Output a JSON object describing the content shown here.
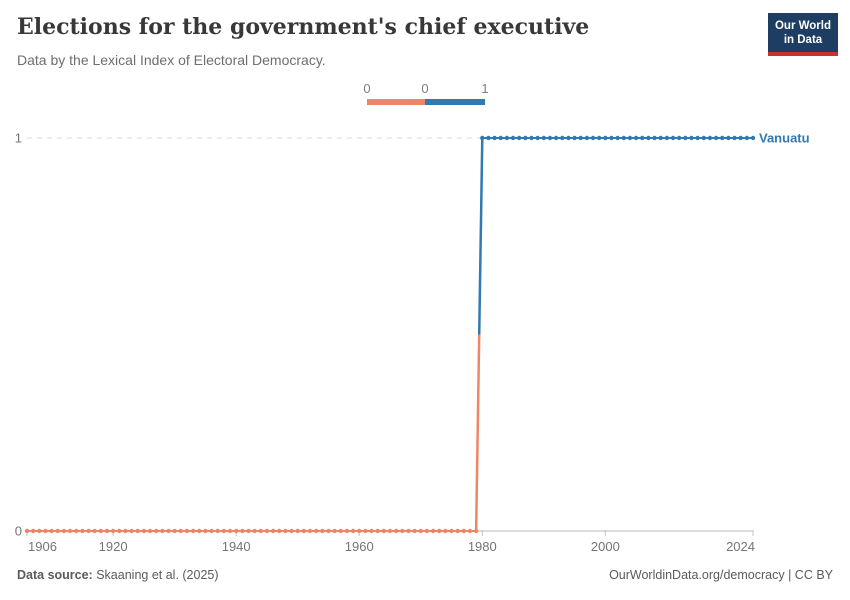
{
  "header": {
    "title": "Elections for the government's chief executive",
    "subtitle": "Data by the Lexical Index of Electoral Democracy.",
    "logo": {
      "line1": "Our World",
      "line2": "in Data",
      "bg_color": "#1d3d63",
      "accent_color": "#c5332d"
    }
  },
  "legend": {
    "tick_labels": [
      "0",
      "0",
      "1"
    ]
  },
  "chart_data": {
    "type": "line",
    "title": "Elections for the government's chief executive",
    "entity_label": "Vanuatu",
    "x": {
      "min": 1906,
      "max": 2024,
      "ticks": [
        1906,
        1920,
        1940,
        1960,
        1980,
        2000,
        2024
      ]
    },
    "y": {
      "min": 0,
      "max": 1,
      "ticks": [
        0,
        1
      ]
    },
    "series": [
      {
        "name": "Vanuatu",
        "segments": [
          {
            "from": 1906,
            "to": 1979,
            "value": 0
          },
          {
            "from": 1980,
            "to": 2024,
            "value": 1
          }
        ]
      }
    ],
    "value_colors": {
      "0": "#EE8665",
      "1": "#3179B1"
    },
    "grid": "dashed gridline at y=1, solid axis at y=0",
    "legend_position": "top-center",
    "marker": "circle every year"
  },
  "footer": {
    "source_label": "Data source:",
    "source_value": "Skaaning et al. (2025)",
    "credit": "OurWorldinData.org/democracy | CC BY"
  }
}
